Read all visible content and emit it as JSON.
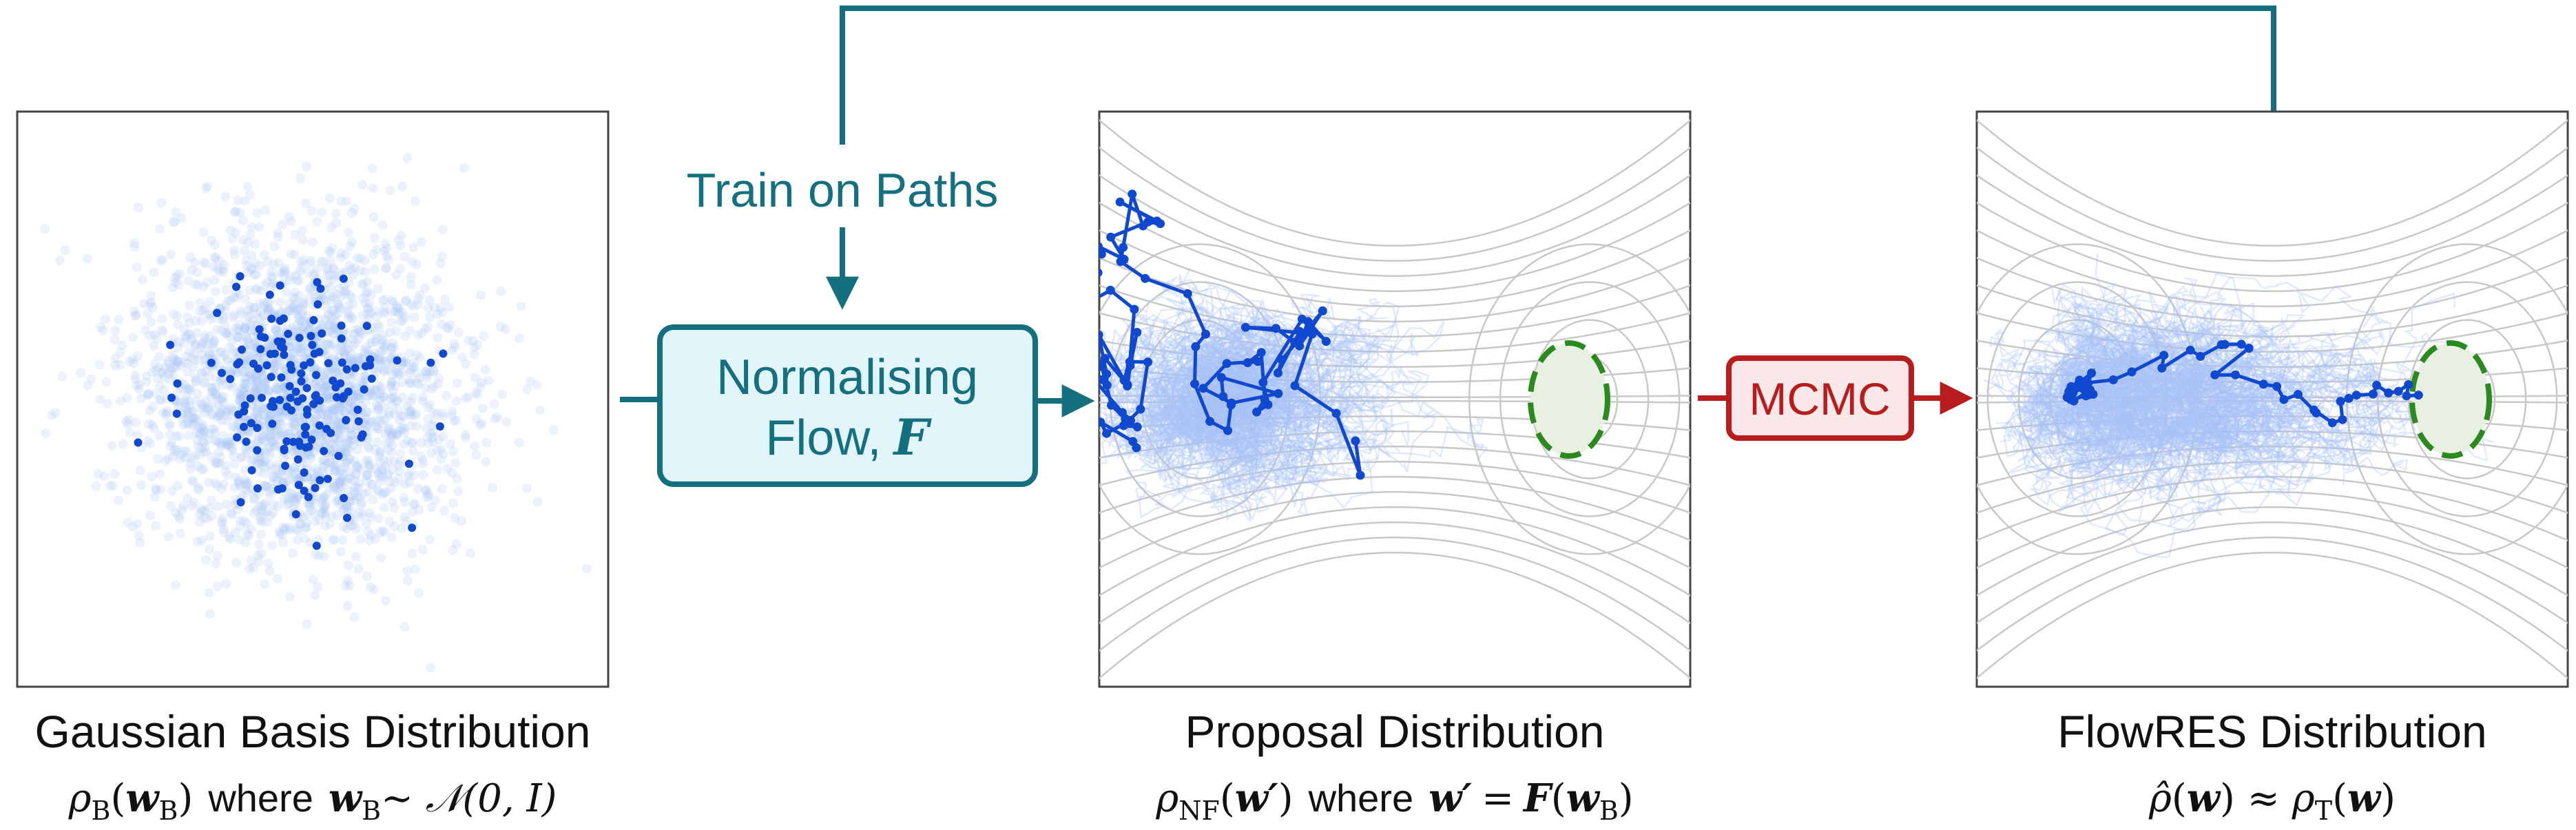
{
  "colors": {
    "teal": "#14707f",
    "nf_box_fill": "#e1f5fb",
    "mcmc_red": "#b81c1c",
    "mcmc_fill": "#fbe9e9",
    "samples_light": "#a9c4f7",
    "samples_dark": "#1048d0",
    "target_green": "#2a8a1e",
    "target_fill": "#e8f0e2",
    "contour_gray": "#c8c8c8"
  },
  "panels": {
    "basis": {
      "title": "Gaussian Basis Distribution",
      "formula_rho": "ρ",
      "formula_rho_sub": "B",
      "formula_arg": "w",
      "formula_arg_sub": "B",
      "formula_where": "where",
      "formula_rhs_var": "w",
      "formula_rhs_sub": "B",
      "formula_rhs": "∼ 𝒩(0, I)"
    },
    "proposal": {
      "title": "Proposal Distribution",
      "formula_rho": "ρ",
      "formula_rho_sub": "NF",
      "formula_arg": "w′",
      "formula_where": "where",
      "formula_lhs": "w′",
      "formula_eq": "=",
      "formula_F": "F",
      "formula_F_arg": "w",
      "formula_F_arg_sub": "B"
    },
    "flowres": {
      "title": "FlowRES Distribution",
      "formula_rho_hat": "ρ̂",
      "formula_arg": "w",
      "formula_approx": "≈",
      "formula_rho_t": "ρ",
      "formula_rho_t_sub": "T",
      "formula_arg2": "w"
    }
  },
  "nf_box": {
    "line1": "Normalising",
    "line2": "Flow,",
    "symbol": "F"
  },
  "train_label": "Train on Paths",
  "mcmc_label": "MCMC"
}
